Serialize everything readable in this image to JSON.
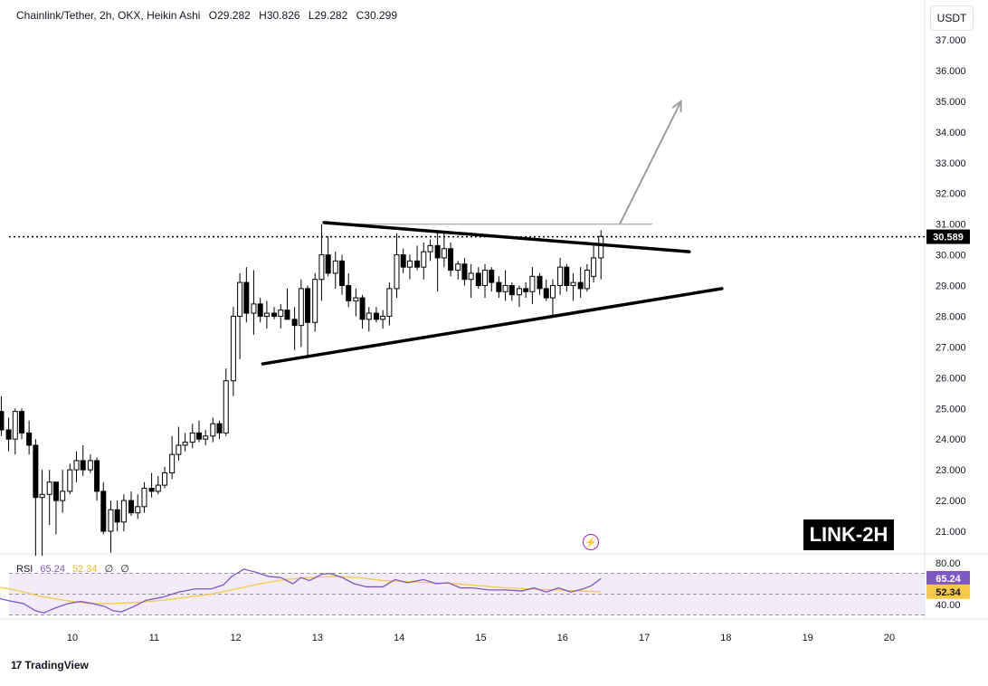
{
  "legend": {
    "symbol": "Chainlink/Tether, 2h, OKX, Heikin Ashi",
    "open": "O29.282",
    "high": "H30.826",
    "low": "L29.282",
    "close": "C30.299"
  },
  "currency_label": "USDT",
  "watermark": "LINK-2H",
  "current_price_label": "30.589",
  "rsi_legend": {
    "name": "RSI",
    "value": "65.24",
    "ma": "52.34",
    "extra1": "∅",
    "extra2": "∅"
  },
  "rsi_badges": {
    "rsi": "65.24",
    "ma": "52.34"
  },
  "brand": "TradingView",
  "colors": {
    "up": "#ffffff",
    "down": "#000000",
    "rsi_line": "#7e57c2",
    "rsi_ma": "#f7c948",
    "rsi_band": "#ede7f6",
    "arrow": "#9e9e9e"
  },
  "chart_data": {
    "type": "candlestick",
    "title": "Chainlink/Tether, 2h, OKX, Heikin Ashi",
    "y_ticks": [
      "37.000",
      "36.000",
      "35.000",
      "34.000",
      "33.000",
      "32.000",
      "31.000",
      "30.000",
      "29.000",
      "28.000",
      "27.000",
      "26.000",
      "25.000",
      "24.000",
      "23.000",
      "22.000",
      "21.000"
    ],
    "x_ticks": [
      "10",
      "11",
      "12",
      "13",
      "14",
      "15",
      "16",
      "17",
      "18",
      "19",
      "20"
    ],
    "ylim": [
      20.1,
      37.3
    ],
    "rsi_ticks": [
      "80.00",
      "40.00"
    ],
    "rsi_lim": [
      30,
      80
    ],
    "rsi_levels": [
      70,
      50,
      30
    ],
    "candles": [
      {
        "x": 9.05,
        "o": 25.3,
        "h": 25.6,
        "l": 24.2,
        "c": 24.9
      },
      {
        "x": 9.13,
        "o": 24.9,
        "h": 25.4,
        "l": 24.1,
        "c": 24.3
      },
      {
        "x": 9.22,
        "o": 24.3,
        "h": 24.7,
        "l": 23.6,
        "c": 24.0
      },
      {
        "x": 9.3,
        "o": 24.0,
        "h": 25.0,
        "l": 23.5,
        "c": 24.9
      },
      {
        "x": 9.38,
        "o": 24.9,
        "h": 25.0,
        "l": 24.0,
        "c": 24.2
      },
      {
        "x": 9.47,
        "o": 24.2,
        "h": 24.6,
        "l": 23.5,
        "c": 23.8
      },
      {
        "x": 9.55,
        "o": 23.8,
        "h": 24.0,
        "l": 20.2,
        "c": 22.1
      },
      {
        "x": 9.63,
        "o": 22.1,
        "h": 23.0,
        "l": 20.2,
        "c": 22.2
      },
      {
        "x": 9.72,
        "o": 22.2,
        "h": 23.0,
        "l": 21.2,
        "c": 22.6
      },
      {
        "x": 9.8,
        "o": 22.6,
        "h": 22.6,
        "l": 20.9,
        "c": 22.0
      },
      {
        "x": 9.88,
        "o": 22.0,
        "h": 23.0,
        "l": 21.6,
        "c": 22.3
      },
      {
        "x": 9.97,
        "o": 22.3,
        "h": 23.2,
        "l": 22.2,
        "c": 23.0
      },
      {
        "x": 10.05,
        "o": 23.0,
        "h": 23.6,
        "l": 22.6,
        "c": 23.3
      },
      {
        "x": 10.13,
        "o": 23.3,
        "h": 23.8,
        "l": 22.8,
        "c": 23.0
      },
      {
        "x": 10.22,
        "o": 23.0,
        "h": 23.5,
        "l": 22.9,
        "c": 23.3
      },
      {
        "x": 10.3,
        "o": 23.3,
        "h": 23.4,
        "l": 22.0,
        "c": 22.3
      },
      {
        "x": 10.38,
        "o": 22.3,
        "h": 22.6,
        "l": 20.9,
        "c": 21.0
      },
      {
        "x": 10.47,
        "o": 21.0,
        "h": 22.0,
        "l": 20.3,
        "c": 21.7
      },
      {
        "x": 10.55,
        "o": 21.7,
        "h": 22.0,
        "l": 21.0,
        "c": 21.3
      },
      {
        "x": 10.63,
        "o": 21.3,
        "h": 22.2,
        "l": 21.0,
        "c": 22.0
      },
      {
        "x": 10.72,
        "o": 22.0,
        "h": 22.3,
        "l": 21.5,
        "c": 21.6
      },
      {
        "x": 10.8,
        "o": 21.6,
        "h": 22.2,
        "l": 21.4,
        "c": 21.8
      },
      {
        "x": 10.88,
        "o": 21.8,
        "h": 22.6,
        "l": 21.6,
        "c": 22.4
      },
      {
        "x": 10.97,
        "o": 22.4,
        "h": 22.9,
        "l": 22.1,
        "c": 22.3
      },
      {
        "x": 11.05,
        "o": 22.3,
        "h": 22.8,
        "l": 22.2,
        "c": 22.5
      },
      {
        "x": 11.13,
        "o": 22.5,
        "h": 23.1,
        "l": 22.4,
        "c": 22.9
      },
      {
        "x": 11.22,
        "o": 22.9,
        "h": 24.1,
        "l": 22.7,
        "c": 23.5
      },
      {
        "x": 11.3,
        "o": 23.5,
        "h": 24.4,
        "l": 23.3,
        "c": 23.8
      },
      {
        "x": 11.38,
        "o": 23.8,
        "h": 24.2,
        "l": 23.6,
        "c": 23.9
      },
      {
        "x": 11.47,
        "o": 23.9,
        "h": 24.5,
        "l": 23.7,
        "c": 24.2
      },
      {
        "x": 11.55,
        "o": 24.2,
        "h": 24.6,
        "l": 23.9,
        "c": 24.0
      },
      {
        "x": 11.63,
        "o": 24.0,
        "h": 24.3,
        "l": 23.8,
        "c": 24.1
      },
      {
        "x": 11.72,
        "o": 24.1,
        "h": 24.7,
        "l": 23.9,
        "c": 24.5
      },
      {
        "x": 11.8,
        "o": 24.5,
        "h": 24.6,
        "l": 24.0,
        "c": 24.2
      },
      {
        "x": 11.88,
        "o": 24.2,
        "h": 26.3,
        "l": 24.1,
        "c": 25.9
      },
      {
        "x": 11.97,
        "o": 25.9,
        "h": 28.3,
        "l": 25.4,
        "c": 28.0
      },
      {
        "x": 12.05,
        "o": 28.0,
        "h": 29.4,
        "l": 26.6,
        "c": 29.1
      },
      {
        "x": 12.13,
        "o": 29.1,
        "h": 29.6,
        "l": 27.8,
        "c": 28.1
      },
      {
        "x": 12.22,
        "o": 28.1,
        "h": 29.5,
        "l": 27.4,
        "c": 28.4
      },
      {
        "x": 12.3,
        "o": 28.4,
        "h": 28.6,
        "l": 27.8,
        "c": 28.0
      },
      {
        "x": 12.38,
        "o": 28.0,
        "h": 28.5,
        "l": 27.6,
        "c": 28.1
      },
      {
        "x": 12.47,
        "o": 28.1,
        "h": 28.3,
        "l": 27.9,
        "c": 28.0
      },
      {
        "x": 12.55,
        "o": 28.0,
        "h": 28.4,
        "l": 27.6,
        "c": 28.2
      },
      {
        "x": 12.63,
        "o": 28.2,
        "h": 28.9,
        "l": 27.9,
        "c": 27.9
      },
      {
        "x": 12.72,
        "o": 27.9,
        "h": 28.3,
        "l": 26.9,
        "c": 27.7
      },
      {
        "x": 12.8,
        "o": 27.7,
        "h": 29.2,
        "l": 27.0,
        "c": 28.9
      },
      {
        "x": 12.88,
        "o": 28.9,
        "h": 29.0,
        "l": 26.7,
        "c": 27.8
      },
      {
        "x": 12.97,
        "o": 27.8,
        "h": 29.4,
        "l": 27.5,
        "c": 29.2
      },
      {
        "x": 13.05,
        "o": 29.2,
        "h": 31.0,
        "l": 28.5,
        "c": 30.0
      },
      {
        "x": 13.13,
        "o": 30.0,
        "h": 30.6,
        "l": 29.3,
        "c": 29.4
      },
      {
        "x": 13.22,
        "o": 29.4,
        "h": 30.1,
        "l": 28.9,
        "c": 29.8
      },
      {
        "x": 13.3,
        "o": 29.8,
        "h": 30.0,
        "l": 28.7,
        "c": 29.0
      },
      {
        "x": 13.38,
        "o": 29.0,
        "h": 29.4,
        "l": 28.3,
        "c": 28.5
      },
      {
        "x": 13.47,
        "o": 28.5,
        "h": 28.9,
        "l": 28.0,
        "c": 28.6
      },
      {
        "x": 13.55,
        "o": 28.6,
        "h": 28.7,
        "l": 27.6,
        "c": 27.9
      },
      {
        "x": 13.63,
        "o": 27.9,
        "h": 28.3,
        "l": 27.5,
        "c": 28.1
      },
      {
        "x": 13.72,
        "o": 28.1,
        "h": 28.3,
        "l": 27.8,
        "c": 27.9
      },
      {
        "x": 13.8,
        "o": 27.9,
        "h": 28.2,
        "l": 27.6,
        "c": 28.0
      },
      {
        "x": 13.88,
        "o": 28.0,
        "h": 29.1,
        "l": 27.7,
        "c": 28.9
      },
      {
        "x": 13.97,
        "o": 28.9,
        "h": 30.7,
        "l": 28.6,
        "c": 30.0
      },
      {
        "x": 14.05,
        "o": 30.0,
        "h": 30.2,
        "l": 29.4,
        "c": 29.6
      },
      {
        "x": 14.13,
        "o": 29.6,
        "h": 30.0,
        "l": 29.2,
        "c": 29.8
      },
      {
        "x": 14.22,
        "o": 29.8,
        "h": 30.3,
        "l": 29.5,
        "c": 29.6
      },
      {
        "x": 14.3,
        "o": 29.6,
        "h": 30.4,
        "l": 29.2,
        "c": 30.1
      },
      {
        "x": 14.38,
        "o": 30.1,
        "h": 30.5,
        "l": 29.8,
        "c": 30.3
      },
      {
        "x": 14.47,
        "o": 30.3,
        "h": 30.8,
        "l": 28.8,
        "c": 29.9
      },
      {
        "x": 14.55,
        "o": 29.9,
        "h": 30.7,
        "l": 29.6,
        "c": 30.2
      },
      {
        "x": 14.63,
        "o": 30.2,
        "h": 30.4,
        "l": 29.3,
        "c": 29.5
      },
      {
        "x": 14.72,
        "o": 29.5,
        "h": 29.8,
        "l": 29.2,
        "c": 29.7
      },
      {
        "x": 14.8,
        "o": 29.7,
        "h": 29.9,
        "l": 29.0,
        "c": 29.2
      },
      {
        "x": 14.88,
        "o": 29.2,
        "h": 29.7,
        "l": 28.6,
        "c": 29.4
      },
      {
        "x": 14.97,
        "o": 29.4,
        "h": 29.6,
        "l": 28.9,
        "c": 29.0
      },
      {
        "x": 15.05,
        "o": 29.0,
        "h": 29.7,
        "l": 28.6,
        "c": 29.5
      },
      {
        "x": 15.13,
        "o": 29.5,
        "h": 29.6,
        "l": 28.8,
        "c": 29.1
      },
      {
        "x": 15.22,
        "o": 29.1,
        "h": 29.3,
        "l": 28.6,
        "c": 28.8
      },
      {
        "x": 15.3,
        "o": 28.8,
        "h": 29.5,
        "l": 28.5,
        "c": 29.0
      },
      {
        "x": 15.38,
        "o": 29.0,
        "h": 29.1,
        "l": 28.5,
        "c": 28.7
      },
      {
        "x": 15.47,
        "o": 28.7,
        "h": 29.0,
        "l": 28.3,
        "c": 28.9
      },
      {
        "x": 15.55,
        "o": 28.9,
        "h": 29.1,
        "l": 28.6,
        "c": 28.8
      },
      {
        "x": 15.63,
        "o": 28.8,
        "h": 29.6,
        "l": 28.4,
        "c": 29.3
      },
      {
        "x": 15.72,
        "o": 29.3,
        "h": 29.4,
        "l": 28.7,
        "c": 28.9
      },
      {
        "x": 15.8,
        "o": 28.9,
        "h": 29.2,
        "l": 28.5,
        "c": 28.6
      },
      {
        "x": 15.88,
        "o": 28.6,
        "h": 29.2,
        "l": 28.0,
        "c": 29.0
      },
      {
        "x": 15.97,
        "o": 29.0,
        "h": 29.9,
        "l": 28.7,
        "c": 29.6
      },
      {
        "x": 16.05,
        "o": 29.6,
        "h": 29.7,
        "l": 28.8,
        "c": 29.0
      },
      {
        "x": 16.13,
        "o": 29.0,
        "h": 29.4,
        "l": 28.5,
        "c": 29.1
      },
      {
        "x": 16.22,
        "o": 29.1,
        "h": 29.6,
        "l": 28.6,
        "c": 28.9
      },
      {
        "x": 16.3,
        "o": 28.9,
        "h": 29.7,
        "l": 28.8,
        "c": 29.5
      },
      {
        "x": 16.38,
        "o": 29.3,
        "h": 30.3,
        "l": 29.1,
        "c": 29.9
      },
      {
        "x": 16.47,
        "o": 29.9,
        "h": 30.8,
        "l": 29.2,
        "c": 30.6
      }
    ],
    "rsi": [
      [
        9.0,
        48
      ],
      [
        9.2,
        44
      ],
      [
        9.4,
        41
      ],
      [
        9.55,
        34
      ],
      [
        9.65,
        32
      ],
      [
        9.8,
        37
      ],
      [
        9.95,
        41
      ],
      [
        10.1,
        43
      ],
      [
        10.25,
        41
      ],
      [
        10.4,
        38
      ],
      [
        10.5,
        34
      ],
      [
        10.6,
        33
      ],
      [
        10.75,
        38
      ],
      [
        10.9,
        44
      ],
      [
        11.1,
        47
      ],
      [
        11.3,
        52
      ],
      [
        11.5,
        55
      ],
      [
        11.7,
        55
      ],
      [
        11.85,
        59
      ],
      [
        11.95,
        67
      ],
      [
        12.1,
        74
      ],
      [
        12.25,
        71
      ],
      [
        12.4,
        67
      ],
      [
        12.55,
        66
      ],
      [
        12.7,
        60
      ],
      [
        12.8,
        66
      ],
      [
        12.9,
        63
      ],
      [
        13.05,
        69
      ],
      [
        13.15,
        70
      ],
      [
        13.3,
        66
      ],
      [
        13.45,
        60
      ],
      [
        13.6,
        57
      ],
      [
        13.8,
        57
      ],
      [
        13.95,
        64
      ],
      [
        14.1,
        61
      ],
      [
        14.3,
        64
      ],
      [
        14.45,
        60
      ],
      [
        14.6,
        61
      ],
      [
        14.75,
        56
      ],
      [
        14.9,
        56
      ],
      [
        15.1,
        54
      ],
      [
        15.3,
        54
      ],
      [
        15.5,
        53
      ],
      [
        15.65,
        56
      ],
      [
        15.8,
        52
      ],
      [
        15.95,
        56
      ],
      [
        16.1,
        52
      ],
      [
        16.25,
        55
      ],
      [
        16.35,
        58
      ],
      [
        16.47,
        65
      ]
    ],
    "rsi_ma": [
      [
        9.0,
        58
      ],
      [
        9.3,
        54
      ],
      [
        9.6,
        48
      ],
      [
        9.9,
        44
      ],
      [
        10.2,
        41
      ],
      [
        10.5,
        41
      ],
      [
        10.8,
        42
      ],
      [
        11.1,
        44
      ],
      [
        11.4,
        47
      ],
      [
        11.7,
        50
      ],
      [
        12.0,
        55
      ],
      [
        12.3,
        60
      ],
      [
        12.6,
        64
      ],
      [
        12.9,
        66
      ],
      [
        13.2,
        67
      ],
      [
        13.5,
        66
      ],
      [
        13.8,
        63
      ],
      [
        14.1,
        62
      ],
      [
        14.4,
        61
      ],
      [
        14.7,
        60
      ],
      [
        15.0,
        58
      ],
      [
        15.3,
        56
      ],
      [
        15.6,
        55
      ],
      [
        15.9,
        54
      ],
      [
        16.2,
        53
      ],
      [
        16.47,
        52.34
      ]
    ],
    "last_price": 30.589,
    "annotations": [
      {
        "kind": "descending-trendline",
        "points": [
          [
            13.08,
            31.05
          ],
          [
            17.55,
            30.1
          ]
        ]
      },
      {
        "kind": "ascending-trendline",
        "points": [
          [
            12.33,
            26.45
          ],
          [
            17.95,
            28.9
          ]
        ]
      },
      {
        "kind": "horizontal-resistance",
        "points": [
          [
            13.08,
            31.0
          ],
          [
            17.1,
            31.0
          ]
        ]
      },
      {
        "kind": "breakout-arrow",
        "points": [
          [
            16.7,
            31.0
          ],
          [
            17.45,
            35.0
          ]
        ]
      }
    ]
  }
}
